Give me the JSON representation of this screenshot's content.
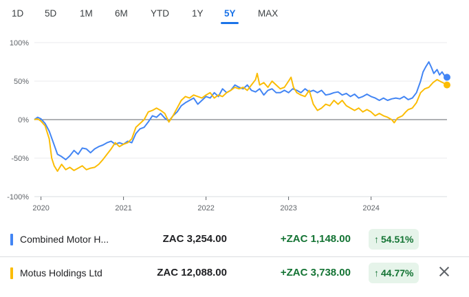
{
  "range_tabs": [
    "1D",
    "5D",
    "1M",
    "6M",
    "YTD",
    "1Y",
    "5Y",
    "MAX"
  ],
  "active_tab": "5Y",
  "colors": {
    "accent": "#1a73e8",
    "series1": "#4285f4",
    "series2": "#fbbc04",
    "positive": "#137333"
  },
  "chart_data": {
    "type": "line",
    "y_tick_labels": [
      "100%",
      "50%",
      "0%",
      "-50%",
      "-100%"
    ],
    "x_tick_labels": [
      "2020",
      "2021",
      "2022",
      "2023",
      "2024"
    ],
    "x_range": [
      2019.92,
      2024.92
    ],
    "ylim": [
      -100,
      100
    ],
    "baseline": 0,
    "series": [
      {
        "name": "Combined Motor H...",
        "color": "#4285f4",
        "points": [
          [
            2019.92,
            0
          ],
          [
            2019.96,
            3
          ],
          [
            2020.0,
            1
          ],
          [
            2020.05,
            -5
          ],
          [
            2020.1,
            -15
          ],
          [
            2020.15,
            -30
          ],
          [
            2020.2,
            -45
          ],
          [
            2020.25,
            -48
          ],
          [
            2020.3,
            -52
          ],
          [
            2020.35,
            -47
          ],
          [
            2020.4,
            -40
          ],
          [
            2020.45,
            -45
          ],
          [
            2020.5,
            -37
          ],
          [
            2020.55,
            -38
          ],
          [
            2020.6,
            -43
          ],
          [
            2020.65,
            -38
          ],
          [
            2020.7,
            -35
          ],
          [
            2020.75,
            -33
          ],
          [
            2020.8,
            -30
          ],
          [
            2020.85,
            -28
          ],
          [
            2020.9,
            -32
          ],
          [
            2020.95,
            -30
          ],
          [
            2021.0,
            -32
          ],
          [
            2021.05,
            -28
          ],
          [
            2021.1,
            -30
          ],
          [
            2021.15,
            -18
          ],
          [
            2021.2,
            -12
          ],
          [
            2021.25,
            -10
          ],
          [
            2021.3,
            -3
          ],
          [
            2021.35,
            5
          ],
          [
            2021.4,
            3
          ],
          [
            2021.45,
            8
          ],
          [
            2021.5,
            2
          ],
          [
            2021.55,
            -2
          ],
          [
            2021.6,
            5
          ],
          [
            2021.65,
            10
          ],
          [
            2021.7,
            18
          ],
          [
            2021.75,
            22
          ],
          [
            2021.8,
            25
          ],
          [
            2021.85,
            28
          ],
          [
            2021.9,
            20
          ],
          [
            2021.95,
            25
          ],
          [
            2022.0,
            30
          ],
          [
            2022.05,
            28
          ],
          [
            2022.1,
            35
          ],
          [
            2022.15,
            30
          ],
          [
            2022.2,
            40
          ],
          [
            2022.25,
            35
          ],
          [
            2022.3,
            38
          ],
          [
            2022.35,
            45
          ],
          [
            2022.4,
            42
          ],
          [
            2022.45,
            40
          ],
          [
            2022.5,
            45
          ],
          [
            2022.55,
            38
          ],
          [
            2022.6,
            36
          ],
          [
            2022.65,
            40
          ],
          [
            2022.7,
            32
          ],
          [
            2022.75,
            38
          ],
          [
            2022.8,
            40
          ],
          [
            2022.85,
            35
          ],
          [
            2022.9,
            35
          ],
          [
            2022.95,
            38
          ],
          [
            2023.0,
            35
          ],
          [
            2023.05,
            40
          ],
          [
            2023.1,
            38
          ],
          [
            2023.15,
            35
          ],
          [
            2023.2,
            40
          ],
          [
            2023.25,
            36
          ],
          [
            2023.3,
            38
          ],
          [
            2023.35,
            35
          ],
          [
            2023.4,
            38
          ],
          [
            2023.45,
            32
          ],
          [
            2023.5,
            33
          ],
          [
            2023.55,
            35
          ],
          [
            2023.6,
            36
          ],
          [
            2023.65,
            32
          ],
          [
            2023.7,
            34
          ],
          [
            2023.75,
            30
          ],
          [
            2023.8,
            33
          ],
          [
            2023.85,
            28
          ],
          [
            2023.9,
            30
          ],
          [
            2023.95,
            33
          ],
          [
            2024.0,
            30
          ],
          [
            2024.05,
            28
          ],
          [
            2024.1,
            25
          ],
          [
            2024.15,
            28
          ],
          [
            2024.2,
            25
          ],
          [
            2024.25,
            27
          ],
          [
            2024.3,
            28
          ],
          [
            2024.35,
            27
          ],
          [
            2024.4,
            30
          ],
          [
            2024.45,
            26
          ],
          [
            2024.5,
            28
          ],
          [
            2024.55,
            35
          ],
          [
            2024.6,
            50
          ],
          [
            2024.63,
            62
          ],
          [
            2024.66,
            68
          ],
          [
            2024.7,
            75
          ],
          [
            2024.73,
            68
          ],
          [
            2024.76,
            60
          ],
          [
            2024.8,
            65
          ],
          [
            2024.83,
            58
          ],
          [
            2024.86,
            62
          ],
          [
            2024.89,
            57
          ],
          [
            2024.92,
            55
          ]
        ]
      },
      {
        "name": "Motus Holdings Ltd",
        "color": "#fbbc04",
        "points": [
          [
            2019.92,
            0
          ],
          [
            2019.96,
            1
          ],
          [
            2020.0,
            -2
          ],
          [
            2020.05,
            -8
          ],
          [
            2020.1,
            -25
          ],
          [
            2020.13,
            -50
          ],
          [
            2020.16,
            -60
          ],
          [
            2020.2,
            -67
          ],
          [
            2020.25,
            -58
          ],
          [
            2020.3,
            -65
          ],
          [
            2020.35,
            -62
          ],
          [
            2020.4,
            -66
          ],
          [
            2020.45,
            -63
          ],
          [
            2020.5,
            -60
          ],
          [
            2020.55,
            -65
          ],
          [
            2020.6,
            -63
          ],
          [
            2020.65,
            -62
          ],
          [
            2020.7,
            -58
          ],
          [
            2020.75,
            -52
          ],
          [
            2020.8,
            -45
          ],
          [
            2020.85,
            -38
          ],
          [
            2020.9,
            -30
          ],
          [
            2020.95,
            -35
          ],
          [
            2021.0,
            -32
          ],
          [
            2021.05,
            -30
          ],
          [
            2021.1,
            -25
          ],
          [
            2021.15,
            -10
          ],
          [
            2021.2,
            -5
          ],
          [
            2021.25,
            0
          ],
          [
            2021.3,
            10
          ],
          [
            2021.35,
            12
          ],
          [
            2021.4,
            15
          ],
          [
            2021.45,
            12
          ],
          [
            2021.5,
            8
          ],
          [
            2021.55,
            -3
          ],
          [
            2021.6,
            5
          ],
          [
            2021.65,
            15
          ],
          [
            2021.7,
            25
          ],
          [
            2021.75,
            30
          ],
          [
            2021.8,
            28
          ],
          [
            2021.85,
            32
          ],
          [
            2021.9,
            30
          ],
          [
            2021.95,
            28
          ],
          [
            2022.0,
            32
          ],
          [
            2022.05,
            35
          ],
          [
            2022.1,
            28
          ],
          [
            2022.15,
            32
          ],
          [
            2022.2,
            30
          ],
          [
            2022.25,
            35
          ],
          [
            2022.3,
            38
          ],
          [
            2022.35,
            42
          ],
          [
            2022.4,
            40
          ],
          [
            2022.45,
            42
          ],
          [
            2022.5,
            38
          ],
          [
            2022.55,
            45
          ],
          [
            2022.6,
            52
          ],
          [
            2022.62,
            60
          ],
          [
            2022.65,
            45
          ],
          [
            2022.7,
            48
          ],
          [
            2022.75,
            42
          ],
          [
            2022.8,
            50
          ],
          [
            2022.85,
            45
          ],
          [
            2022.9,
            40
          ],
          [
            2022.95,
            42
          ],
          [
            2023.0,
            50
          ],
          [
            2023.03,
            55
          ],
          [
            2023.06,
            42
          ],
          [
            2023.1,
            35
          ],
          [
            2023.15,
            32
          ],
          [
            2023.2,
            30
          ],
          [
            2023.25,
            38
          ],
          [
            2023.3,
            20
          ],
          [
            2023.35,
            12
          ],
          [
            2023.4,
            15
          ],
          [
            2023.45,
            20
          ],
          [
            2023.5,
            18
          ],
          [
            2023.55,
            25
          ],
          [
            2023.6,
            20
          ],
          [
            2023.65,
            25
          ],
          [
            2023.7,
            18
          ],
          [
            2023.75,
            15
          ],
          [
            2023.8,
            12
          ],
          [
            2023.85,
            15
          ],
          [
            2023.9,
            10
          ],
          [
            2023.95,
            13
          ],
          [
            2024.0,
            10
          ],
          [
            2024.05,
            5
          ],
          [
            2024.1,
            8
          ],
          [
            2024.15,
            5
          ],
          [
            2024.2,
            3
          ],
          [
            2024.25,
            0
          ],
          [
            2024.28,
            -4
          ],
          [
            2024.32,
            2
          ],
          [
            2024.38,
            5
          ],
          [
            2024.42,
            10
          ],
          [
            2024.45,
            13
          ],
          [
            2024.5,
            15
          ],
          [
            2024.55,
            22
          ],
          [
            2024.6,
            35
          ],
          [
            2024.65,
            40
          ],
          [
            2024.7,
            42
          ],
          [
            2024.75,
            48
          ],
          [
            2024.8,
            52
          ],
          [
            2024.85,
            49
          ],
          [
            2024.89,
            47
          ],
          [
            2024.92,
            45
          ]
        ]
      }
    ]
  },
  "comparison": [
    {
      "name": "Combined Motor H...",
      "price": "ZAC 3,254.00",
      "change": "+ZAC 1,148.00",
      "percent": "54.51%",
      "color": "#4285f4"
    },
    {
      "name": "Motus Holdings Ltd",
      "price": "ZAC 12,088.00",
      "change": "+ZAC 3,738.00",
      "percent": "44.77%",
      "color": "#fbbc04"
    }
  ]
}
